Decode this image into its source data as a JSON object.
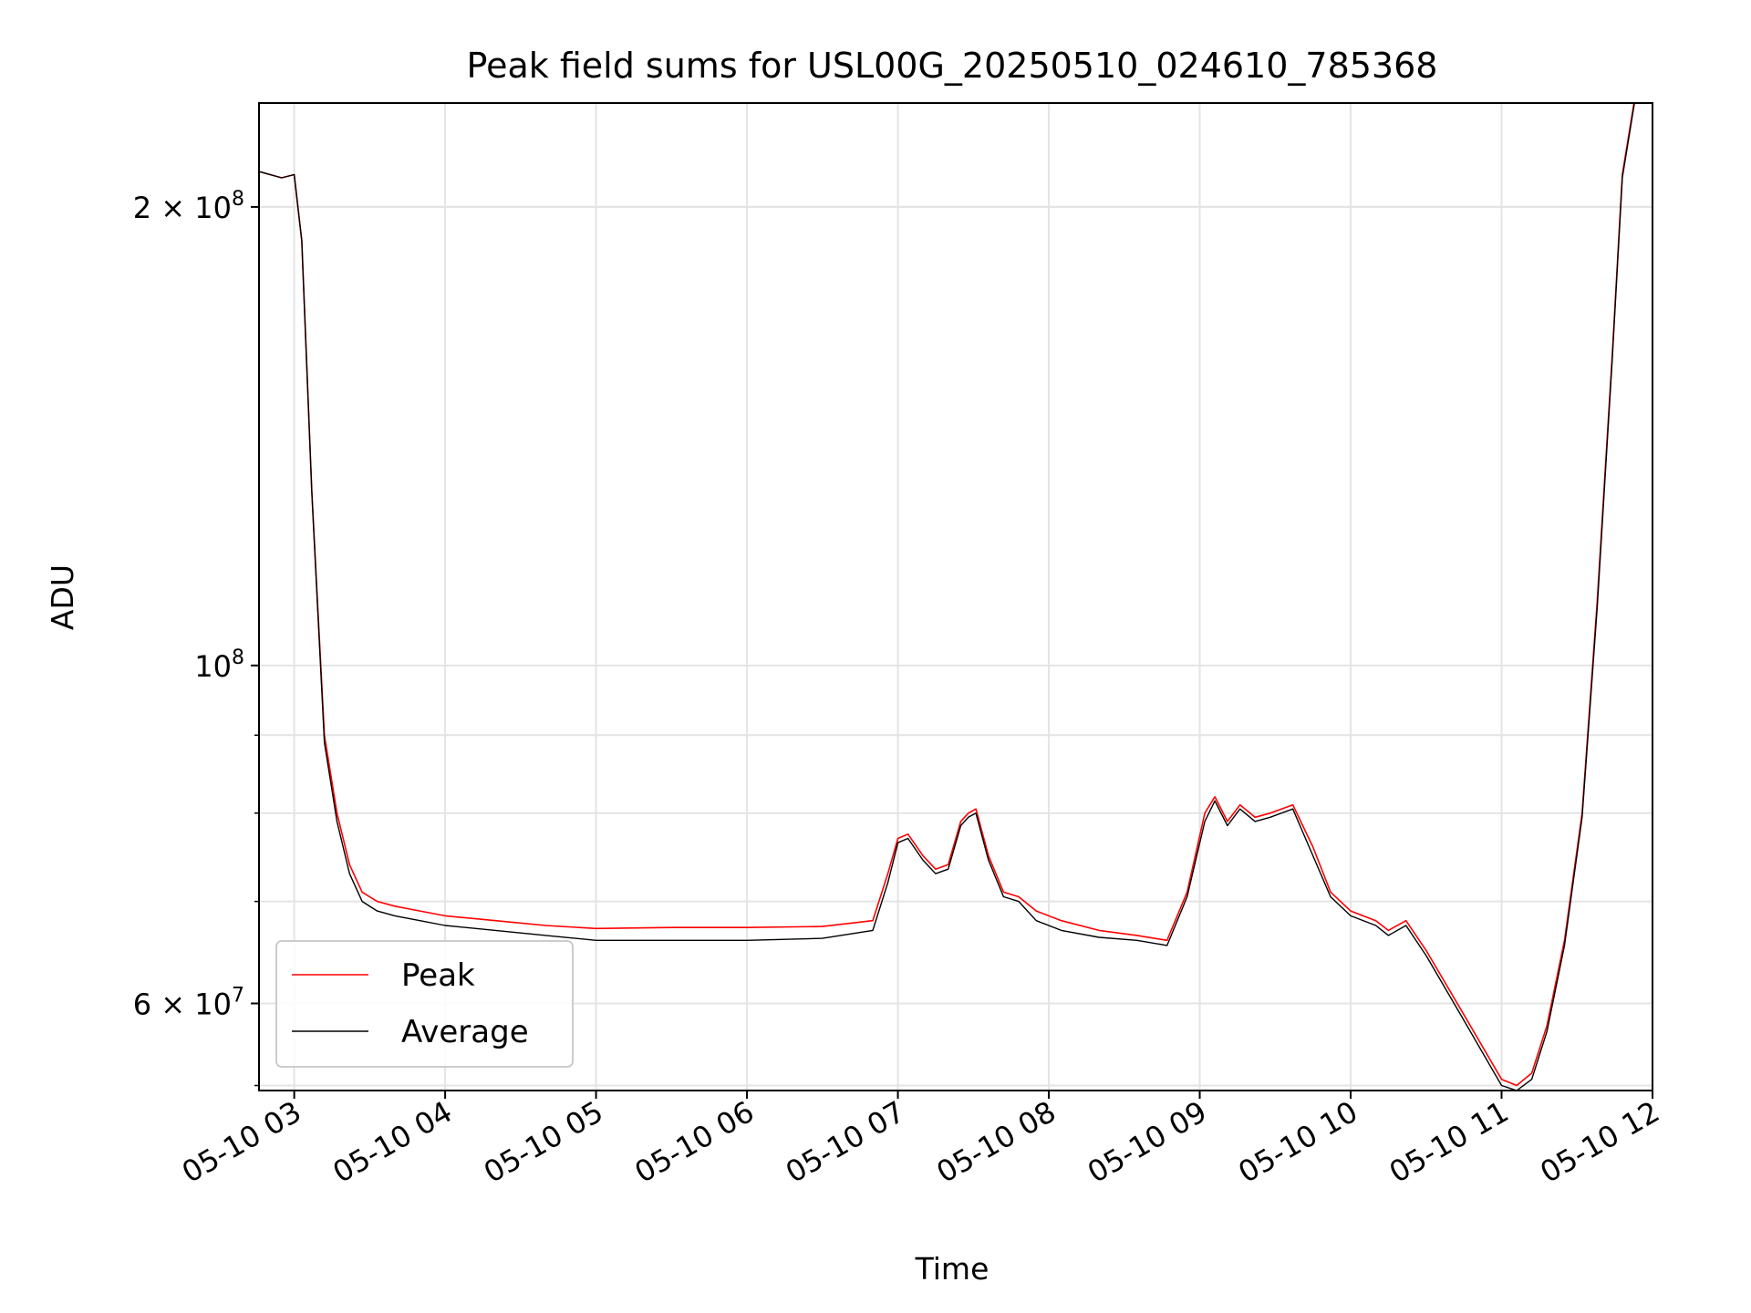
{
  "chart_data": {
    "type": "line",
    "title": "Peak field sums for USL00G_20250510_024610_785368",
    "xlabel": "Time",
    "ylabel": "ADU",
    "x_axis_kind": "datetime",
    "y_scale": "log",
    "grid": true,
    "legend_position": "lower left",
    "xlim": [
      "2025-05-10 02:46",
      "2025-05-10 12:00"
    ],
    "ylim": [
      52600000,
      234000000
    ],
    "x_ticks": [
      {
        "t": "2025-05-10 03:00",
        "label": "05-10 03"
      },
      {
        "t": "2025-05-10 04:00",
        "label": "05-10 04"
      },
      {
        "t": "2025-05-10 05:00",
        "label": "05-10 05"
      },
      {
        "t": "2025-05-10 06:00",
        "label": "05-10 06"
      },
      {
        "t": "2025-05-10 07:00",
        "label": "05-10 07"
      },
      {
        "t": "2025-05-10 08:00",
        "label": "05-10 08"
      },
      {
        "t": "2025-05-10 09:00",
        "label": "05-10 09"
      },
      {
        "t": "2025-05-10 10:00",
        "label": "05-10 10"
      },
      {
        "t": "2025-05-10 11:00",
        "label": "05-10 11"
      },
      {
        "t": "2025-05-10 12:00",
        "label": "05-10 12"
      }
    ],
    "y_major_ticks": [
      {
        "value": 60000000,
        "base": "6 × 10",
        "exp": "7"
      },
      {
        "value": 100000000,
        "base": "10",
        "exp": "8"
      },
      {
        "value": 200000000,
        "base": "2 × 10",
        "exp": "8"
      }
    ],
    "y_minor_ticks": [
      53000000,
      60000000,
      70000000,
      80000000,
      90000000,
      200000000
    ],
    "series": [
      {
        "name": "Peak",
        "color": "#ff0000",
        "x": [
          "2025-05-10 02:46",
          "2025-05-10 02:55",
          "2025-05-10 03:00",
          "2025-05-10 03:03",
          "2025-05-10 03:07",
          "2025-05-10 03:12",
          "2025-05-10 03:17",
          "2025-05-10 03:22",
          "2025-05-10 03:27",
          "2025-05-10 03:33",
          "2025-05-10 03:40",
          "2025-05-10 03:50",
          "2025-05-10 04:00",
          "2025-05-10 04:20",
          "2025-05-10 04:40",
          "2025-05-10 05:00",
          "2025-05-10 05:30",
          "2025-05-10 06:00",
          "2025-05-10 06:30",
          "2025-05-10 06:50",
          "2025-05-10 06:56",
          "2025-05-10 07:00",
          "2025-05-10 07:04",
          "2025-05-10 07:10",
          "2025-05-10 07:15",
          "2025-05-10 07:20",
          "2025-05-10 07:25",
          "2025-05-10 07:28",
          "2025-05-10 07:31",
          "2025-05-10 07:36",
          "2025-05-10 07:42",
          "2025-05-10 07:48",
          "2025-05-10 07:55",
          "2025-05-10 08:05",
          "2025-05-10 08:20",
          "2025-05-10 08:35",
          "2025-05-10 08:47",
          "2025-05-10 08:55",
          "2025-05-10 09:02",
          "2025-05-10 09:06",
          "2025-05-10 09:11",
          "2025-05-10 09:16",
          "2025-05-10 09:22",
          "2025-05-10 09:28",
          "2025-05-10 09:37",
          "2025-05-10 09:45",
          "2025-05-10 09:52",
          "2025-05-10 10:00",
          "2025-05-10 10:10",
          "2025-05-10 10:15",
          "2025-05-10 10:22",
          "2025-05-10 10:30",
          "2025-05-10 10:45",
          "2025-05-10 11:00",
          "2025-05-10 11:06",
          "2025-05-10 11:12",
          "2025-05-10 11:18",
          "2025-05-10 11:25",
          "2025-05-10 11:32",
          "2025-05-10 11:38",
          "2025-05-10 11:44",
          "2025-05-10 11:48",
          "2025-05-10 11:53"
        ],
        "values": [
          211000000,
          209000000,
          210000000,
          190000000,
          130000000,
          90000000,
          80000000,
          74000000,
          71000000,
          70000000,
          69500000,
          69000000,
          68500000,
          68000000,
          67500000,
          67200000,
          67300000,
          67300000,
          67400000,
          68000000,
          73000000,
          77000000,
          77500000,
          75000000,
          73500000,
          74000000,
          79000000,
          80000000,
          80500000,
          75000000,
          71000000,
          70500000,
          69000000,
          68000000,
          67000000,
          66500000,
          66000000,
          71000000,
          80000000,
          82000000,
          79000000,
          81000000,
          79500000,
          80000000,
          81000000,
          76000000,
          71000000,
          69000000,
          68000000,
          67000000,
          68000000,
          65000000,
          59000000,
          53500000,
          53000000,
          54000000,
          58000000,
          66000000,
          80000000,
          110000000,
          160000000,
          210000000,
          236000000
        ]
      },
      {
        "name": "Average",
        "color": "#000000",
        "x": [
          "2025-05-10 02:46",
          "2025-05-10 02:55",
          "2025-05-10 03:00",
          "2025-05-10 03:03",
          "2025-05-10 03:07",
          "2025-05-10 03:12",
          "2025-05-10 03:17",
          "2025-05-10 03:22",
          "2025-05-10 03:27",
          "2025-05-10 03:33",
          "2025-05-10 03:40",
          "2025-05-10 03:50",
          "2025-05-10 04:00",
          "2025-05-10 04:20",
          "2025-05-10 04:40",
          "2025-05-10 05:00",
          "2025-05-10 05:30",
          "2025-05-10 06:00",
          "2025-05-10 06:30",
          "2025-05-10 06:50",
          "2025-05-10 06:56",
          "2025-05-10 07:00",
          "2025-05-10 07:04",
          "2025-05-10 07:10",
          "2025-05-10 07:15",
          "2025-05-10 07:20",
          "2025-05-10 07:25",
          "2025-05-10 07:28",
          "2025-05-10 07:31",
          "2025-05-10 07:36",
          "2025-05-10 07:42",
          "2025-05-10 07:48",
          "2025-05-10 07:55",
          "2025-05-10 08:05",
          "2025-05-10 08:20",
          "2025-05-10 08:35",
          "2025-05-10 08:47",
          "2025-05-10 08:55",
          "2025-05-10 09:02",
          "2025-05-10 09:06",
          "2025-05-10 09:11",
          "2025-05-10 09:16",
          "2025-05-10 09:22",
          "2025-05-10 09:28",
          "2025-05-10 09:37",
          "2025-05-10 09:45",
          "2025-05-10 09:52",
          "2025-05-10 10:00",
          "2025-05-10 10:10",
          "2025-05-10 10:15",
          "2025-05-10 10:22",
          "2025-05-10 10:30",
          "2025-05-10 10:45",
          "2025-05-10 11:00",
          "2025-05-10 11:06",
          "2025-05-10 11:12",
          "2025-05-10 11:18",
          "2025-05-10 11:25",
          "2025-05-10 11:32",
          "2025-05-10 11:38",
          "2025-05-10 11:44",
          "2025-05-10 11:48",
          "2025-05-10 11:53"
        ],
        "values": [
          211000000,
          209000000,
          210000000,
          190000000,
          130000000,
          89000000,
          79000000,
          73000000,
          70000000,
          69000000,
          68500000,
          68000000,
          67500000,
          67000000,
          66500000,
          66000000,
          66000000,
          66000000,
          66200000,
          67000000,
          72000000,
          76500000,
          77000000,
          74500000,
          73000000,
          73500000,
          78500000,
          79500000,
          80000000,
          74500000,
          70500000,
          70000000,
          68000000,
          67000000,
          66300000,
          66000000,
          65500000,
          70500000,
          79000000,
          81500000,
          78500000,
          80500000,
          79000000,
          79500000,
          80500000,
          75000000,
          70500000,
          68500000,
          67500000,
          66500000,
          67500000,
          64500000,
          58500000,
          53000000,
          52600000,
          53500000,
          57500000,
          65500000,
          79500000,
          109000000,
          159000000,
          209000000,
          235000000
        ]
      }
    ]
  }
}
